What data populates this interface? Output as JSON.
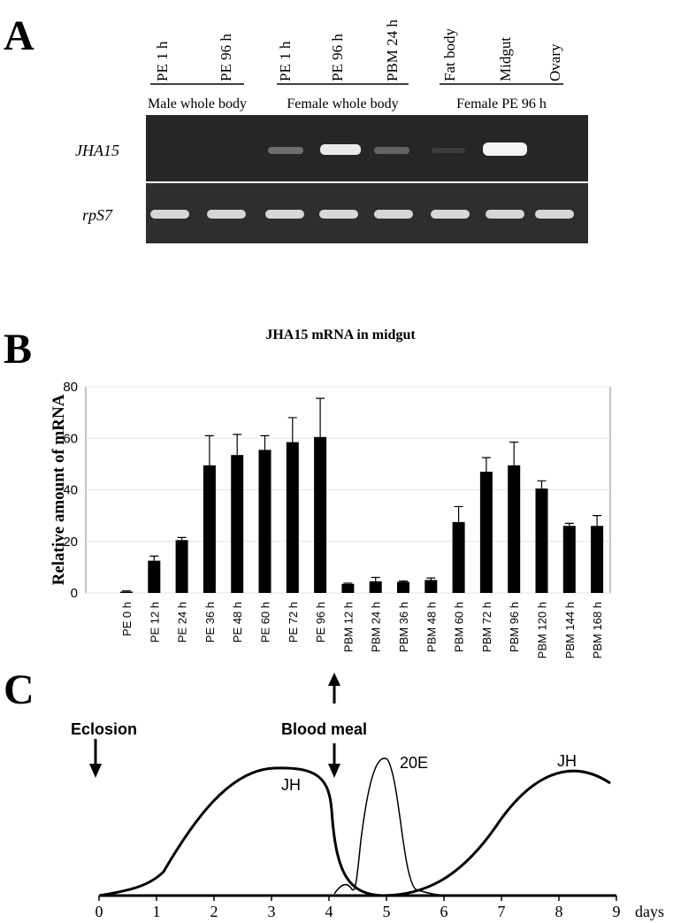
{
  "panel_a": {
    "label": "A",
    "lanes": [
      "PE 1 h",
      "PE 96 h",
      "PE 1 h",
      "PE 96 h",
      "PBM 24 h",
      "Fat body",
      "Midgut",
      "Ovary"
    ],
    "groups": [
      "Male whole body",
      "Female whole body",
      "Female PE 96 h"
    ],
    "genes": [
      "JHA15",
      "rpS7"
    ]
  },
  "chart_data": {
    "type": "bar",
    "label": "B",
    "title": "JHA15 mRNA in midgut",
    "y_label": "Relative amount of mRNA",
    "categories": [
      "PE 0 h",
      "PE 12 h",
      "PE 24 h",
      "PE 36 h",
      "PE 48 h",
      "PE 60 h",
      "PE 72 h",
      "PE 96 h",
      "PBM 12 h",
      "PBM 24 h",
      "PBM 36 h",
      "PBM 48 h",
      "PBM 60 h",
      "PBM 72 h",
      "PBM 96 h",
      "PBM 120 h",
      "PBM 144 h",
      "PBM 168 h"
    ],
    "values": [
      0.5,
      12.5,
      20.5,
      49.5,
      53.5,
      55.5,
      58.5,
      60.5,
      3.5,
      4.5,
      4.3,
      5,
      27.5,
      47,
      49.5,
      40.5,
      26,
      26
    ],
    "errors": [
      0.3,
      1.8,
      1,
      11.5,
      8,
      5.5,
      9.5,
      15,
      0.3,
      1.5,
      0.3,
      0.8,
      6,
      5.5,
      9,
      3,
      1,
      4
    ],
    "color": "#000000",
    "ylim": [
      0,
      80
    ],
    "yticks": [
      0,
      20,
      40,
      60,
      80
    ],
    "grid": true
  },
  "panel_c": {
    "label": "C",
    "annotations": [
      "Eclosion",
      "Blood meal"
    ],
    "curve_labels": [
      "JH",
      "20E",
      "JH"
    ],
    "xlim": [
      0,
      9
    ],
    "xticks": [
      0,
      1,
      2,
      3,
      4,
      5,
      6,
      7,
      8,
      9
    ],
    "x_label": "days"
  }
}
